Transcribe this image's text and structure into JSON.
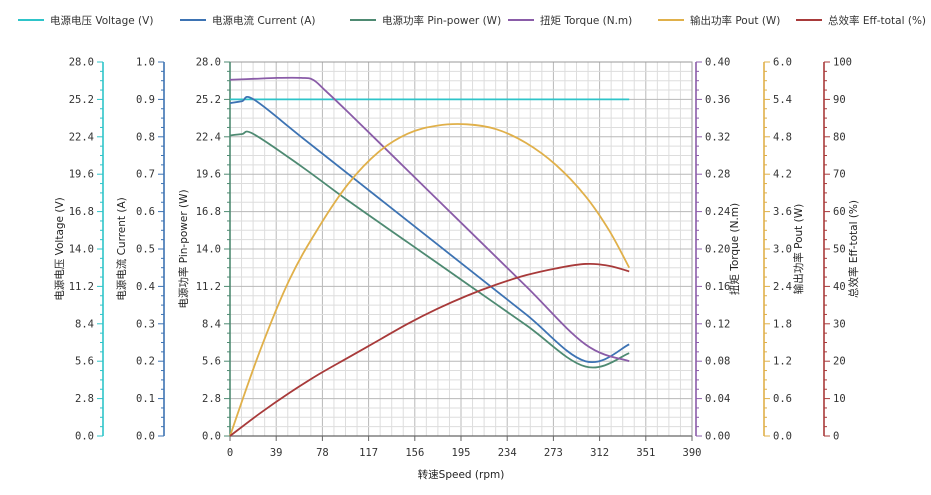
{
  "chart_data": {
    "type": "line",
    "xlabel": "转速Speed (rpm)",
    "xlim": [
      0,
      390
    ],
    "xticks": [
      "0",
      "39",
      "78",
      "117",
      "156",
      "195",
      "234",
      "273",
      "312",
      "351",
      "390"
    ],
    "grid": true,
    "legend_position": "top",
    "axes": [
      {
        "id": "voltage",
        "label": "电源电压 Voltage (V)",
        "ylim": [
          0,
          28
        ],
        "ticks": [
          "0.0",
          "2.8",
          "5.6",
          "8.4",
          "11.2",
          "14.0",
          "16.8",
          "19.6",
          "22.4",
          "25.2",
          "28.0"
        ],
        "side": "left",
        "color": "#2ec4c9"
      },
      {
        "id": "current",
        "label": "电源电流 Current (A)",
        "ylim": [
          0,
          1
        ],
        "ticks": [
          "0.0",
          "0.1",
          "0.2",
          "0.3",
          "0.4",
          "0.5",
          "0.6",
          "0.7",
          "0.8",
          "0.9",
          "1.0"
        ],
        "side": "left",
        "color": "#3d73b3"
      },
      {
        "id": "pin",
        "label": "电源功率 Pin-power (W)",
        "ylim": [
          0,
          28
        ],
        "ticks": [
          "0.0",
          "2.8",
          "5.6",
          "8.4",
          "11.2",
          "14.0",
          "16.8",
          "19.6",
          "22.4",
          "25.2",
          "28.0"
        ],
        "side": "left",
        "color": "#4e8a72"
      },
      {
        "id": "torque",
        "label": "扭矩 Torque (N.m)",
        "ylim": [
          0,
          0.4
        ],
        "ticks": [
          "0.00",
          "0.04",
          "0.08",
          "0.12",
          "0.16",
          "0.20",
          "0.24",
          "0.28",
          "0.32",
          "0.36",
          "0.40"
        ],
        "side": "right",
        "color": "#8a5ca8"
      },
      {
        "id": "pout",
        "label": "输出功率 Pout (W)",
        "ylim": [
          0,
          6
        ],
        "ticks": [
          "0.0",
          "0.6",
          "1.2",
          "1.8",
          "2.4",
          "3.0",
          "3.6",
          "4.2",
          "4.8",
          "5.4",
          "6.0"
        ],
        "side": "right",
        "color": "#e0b04a"
      },
      {
        "id": "eff",
        "label": "总效率 Eff-total (%)",
        "ylim": [
          0,
          100
        ],
        "ticks": [
          "0",
          "10",
          "20",
          "30",
          "40",
          "50",
          "60",
          "70",
          "80",
          "90",
          "100"
        ],
        "side": "right",
        "color": "#a83a3a"
      }
    ],
    "series": [
      {
        "name": "电源电压 Voltage (V)",
        "axis": "voltage",
        "color": "#2ec4c9",
        "x": [
          0,
          20,
          100,
          200,
          300,
          337
        ],
        "y": [
          25.2,
          25.2,
          25.2,
          25.2,
          25.2,
          25.2
        ]
      },
      {
        "name": "电源电流 Current (A)",
        "axis": "current",
        "color": "#3d73b3",
        "x": [
          0,
          10,
          20,
          60,
          100,
          150,
          200,
          250,
          300,
          337
        ],
        "y": [
          0.89,
          0.895,
          0.9,
          0.8,
          0.7,
          0.575,
          0.45,
          0.325,
          0.2,
          0.245
        ]
      },
      {
        "name": "电源功率 Pin-power (W)",
        "axis": "pin",
        "color": "#4e8a72",
        "x": [
          0,
          10,
          20,
          60,
          100,
          150,
          200,
          250,
          300,
          337
        ],
        "y": [
          22.5,
          22.6,
          22.6,
          20.2,
          17.6,
          14.5,
          11.4,
          8.3,
          5.2,
          6.2
        ]
      },
      {
        "name": "扭矩 Torque (N.m)",
        "axis": "torque",
        "color": "#8a5ca8",
        "x": [
          0,
          20,
          40,
          60,
          70,
          80,
          100,
          150,
          200,
          250,
          300,
          337
        ],
        "y": [
          0.381,
          0.382,
          0.383,
          0.383,
          0.381,
          0.37,
          0.346,
          0.284,
          0.222,
          0.16,
          0.098,
          0.08
        ]
      },
      {
        "name": "输出功率 Pout (W)",
        "axis": "pout",
        "color": "#e0b04a",
        "x": [
          0,
          25,
          50,
          75,
          100,
          125,
          150,
          175,
          200,
          225,
          250,
          275,
          300,
          320,
          337
        ],
        "y": [
          0,
          1.35,
          2.5,
          3.35,
          4.05,
          4.55,
          4.85,
          4.98,
          5.0,
          4.92,
          4.7,
          4.35,
          3.85,
          3.3,
          2.7
        ]
      },
      {
        "name": "总效率 Eff-total (%)",
        "axis": "eff",
        "color": "#a83a3a",
        "x": [
          0,
          25,
          50,
          75,
          100,
          125,
          150,
          175,
          200,
          225,
          250,
          275,
          300,
          320,
          337
        ],
        "y": [
          0,
          6,
          11.5,
          16.5,
          21,
          25.5,
          30,
          34,
          37.5,
          40.5,
          43,
          44.8,
          46,
          45.5,
          44
        ]
      }
    ]
  }
}
